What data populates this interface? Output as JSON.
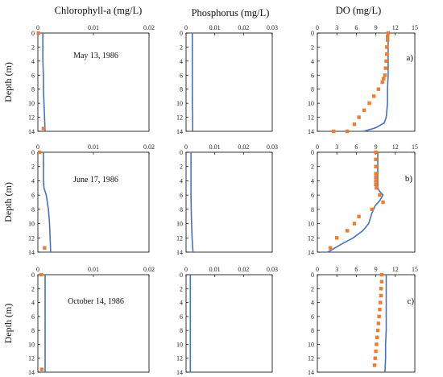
{
  "column_titles": [
    "Chlorophyll-a (mg/L)",
    "Phosphorus (mg/L)",
    "DO (mg/L)"
  ],
  "row_ylabel": "Depth (m)",
  "colors": {
    "model_line": "#4472C4",
    "observed_marker": "#ED7D31",
    "axis": "#000000"
  },
  "chart_data": [
    {
      "type": "line",
      "panel": "chlorophyll-may",
      "title": "Chlorophyll-a (mg/L)",
      "annotation": "May 13, 1986",
      "xlim": [
        0,
        0.02
      ],
      "xticks": [
        "0",
        "0.01",
        "0.02"
      ],
      "ylim": [
        0,
        14
      ],
      "yticks": [
        "0",
        "2",
        "4",
        "6",
        "8",
        "10",
        "12",
        "14"
      ],
      "ylabel": "Depth (m)",
      "series": [
        {
          "kind": "model",
          "x": [
            0.0009,
            0.0009,
            0.0009,
            0.001,
            0.001,
            0.0011,
            0.0012,
            0.0013
          ],
          "y": [
            0,
            2,
            4,
            6,
            8,
            10,
            12,
            14
          ]
        },
        {
          "kind": "observed",
          "x": [
            0.0001,
            0.001
          ],
          "y": [
            0,
            13.6
          ]
        }
      ]
    },
    {
      "type": "line",
      "panel": "phosphorus-may",
      "title": "Phosphorus (mg/L)",
      "xlim": [
        0,
        0.03
      ],
      "xticks": [
        "0",
        "0.01",
        "0.02",
        "0.03"
      ],
      "ylim": [
        0,
        14
      ],
      "yticks": [
        "0",
        "2",
        "4",
        "6",
        "8",
        "10",
        "12",
        "14"
      ],
      "series": [
        {
          "kind": "model",
          "x": [
            0.0022,
            0.0022,
            0.0022,
            0.0022,
            0.0022,
            0.0022,
            0.0023,
            0.0023
          ],
          "y": [
            0,
            2,
            4,
            6,
            8,
            10,
            12,
            14
          ]
        }
      ]
    },
    {
      "type": "line",
      "panel": "do-may",
      "title": "DO (mg/L)",
      "annotation": "a)",
      "xlim": [
        0,
        15
      ],
      "xticks": [
        "0",
        "3",
        "6",
        "9",
        "12",
        "15"
      ],
      "ylim": [
        0,
        14
      ],
      "yticks": [
        "0",
        "2",
        "4",
        "6",
        "8",
        "10",
        "12",
        "14"
      ],
      "series": [
        {
          "kind": "model",
          "x": [
            10.9,
            10.9,
            10.9,
            10.9,
            10.8,
            10.8,
            10.7,
            10.6,
            10.3,
            9.0,
            7.1
          ],
          "y": [
            0,
            2,
            4,
            6,
            8,
            10,
            11,
            12,
            12.8,
            13.5,
            14
          ]
        },
        {
          "kind": "observed",
          "x": [
            10.9,
            10.8,
            10.8,
            10.7,
            10.7,
            10.6,
            10.5,
            10.4,
            10.2,
            10.0,
            9.4,
            8.7,
            8.0,
            7.2,
            6.4,
            5.7,
            4.6,
            2.5
          ],
          "y": [
            0,
            0.5,
            1,
            2,
            3,
            4,
            5,
            6,
            6.5,
            7,
            8,
            9,
            10,
            11,
            12,
            13,
            14,
            14
          ]
        }
      ]
    },
    {
      "type": "line",
      "panel": "chlorophyll-june",
      "annotation": "June 17, 1986",
      "xlim": [
        0,
        0.02
      ],
      "xticks": [
        "0",
        "0.01",
        "0.02"
      ],
      "ylim": [
        0,
        14
      ],
      "yticks": [
        "0",
        "2",
        "4",
        "6",
        "8",
        "10",
        "12",
        "14"
      ],
      "ylabel": "Depth (m)",
      "series": [
        {
          "kind": "model",
          "x": [
            0.001,
            0.001,
            0.001,
            0.0011,
            0.0015,
            0.0019,
            0.0021,
            0.0022,
            0.0023
          ],
          "y": [
            0,
            2,
            4,
            5,
            6,
            8,
            10,
            12,
            14
          ]
        },
        {
          "kind": "observed",
          "x": [
            0.0003,
            0.0012
          ],
          "y": [
            0,
            13.4
          ]
        }
      ]
    },
    {
      "type": "line",
      "panel": "phosphorus-june",
      "xlim": [
        0,
        0.03
      ],
      "xticks": [
        "0",
        "0.01",
        "0.02",
        "0.03"
      ],
      "ylim": [
        0,
        14
      ],
      "yticks": [
        "0",
        "2",
        "4",
        "6",
        "8",
        "10",
        "12",
        "14"
      ],
      "series": [
        {
          "kind": "model",
          "x": [
            0.0017,
            0.0017,
            0.0017,
            0.0017,
            0.0018,
            0.0019,
            0.0021,
            0.0024
          ],
          "y": [
            0,
            2,
            4,
            6,
            8,
            10,
            12,
            14
          ]
        }
      ]
    },
    {
      "type": "line",
      "panel": "do-june",
      "annotation": "b)",
      "xlim": [
        0,
        15
      ],
      "xticks": [
        "0",
        "3",
        "6",
        "9",
        "12",
        "15"
      ],
      "ylim": [
        0,
        14
      ],
      "yticks": [
        "0",
        "2",
        "4",
        "6",
        "8",
        "10",
        "12",
        "14"
      ],
      "series": [
        {
          "kind": "model",
          "x": [
            9.3,
            9.3,
            9.3,
            9.3,
            9.3,
            9.6,
            10.1,
            9.6,
            8.9,
            8.4,
            7.9,
            7.0,
            5.5,
            3.5,
            1.6
          ],
          "y": [
            0,
            2,
            4,
            4.5,
            5,
            5.5,
            6,
            6.8,
            7.5,
            8.5,
            10,
            11,
            12,
            13,
            14
          ]
        },
        {
          "kind": "observed",
          "x": [
            9.0,
            9.0,
            9.0,
            9.0,
            9.0,
            9.0,
            9.0,
            9.1,
            9.6,
            10.1,
            8.4,
            6.4,
            5.7,
            4.6,
            3.0,
            2.0
          ],
          "y": [
            0,
            1,
            2,
            3,
            3.5,
            4,
            4.5,
            5,
            6,
            7,
            8,
            9,
            10,
            11,
            12,
            13.4
          ]
        }
      ]
    },
    {
      "type": "line",
      "panel": "chlorophyll-october",
      "annotation": "October 14, 1986",
      "xlim": [
        0,
        0.02
      ],
      "xticks": [
        "0",
        "0.01",
        "0.02"
      ],
      "ylim": [
        0,
        14
      ],
      "yticks": [
        "0",
        "2",
        "4",
        "6",
        "8",
        "10",
        "12",
        "14"
      ],
      "ylabel": "Depth (m)",
      "series": [
        {
          "kind": "model",
          "x": [
            0.0013,
            0.0013,
            0.0013,
            0.0013,
            0.0013,
            0.0013,
            0.0013,
            0.0013
          ],
          "y": [
            0,
            2,
            4,
            6,
            8,
            10,
            12,
            14
          ]
        },
        {
          "kind": "observed",
          "x": [
            0.0006,
            0.0007
          ],
          "y": [
            0,
            13.6
          ]
        }
      ]
    },
    {
      "type": "line",
      "panel": "phosphorus-october",
      "xlim": [
        0,
        0.03
      ],
      "xticks": [
        "0",
        "0.01",
        "0.02",
        "0.03"
      ],
      "ylim": [
        0,
        14
      ],
      "yticks": [
        "0",
        "2",
        "4",
        "6",
        "8",
        "10",
        "12",
        "14"
      ],
      "series": [
        {
          "kind": "model",
          "x": [
            0.0015,
            0.0015,
            0.0015,
            0.0015,
            0.0015,
            0.0015,
            0.0015,
            0.0015
          ],
          "y": [
            0,
            2,
            4,
            6,
            8,
            10,
            12,
            14
          ]
        }
      ]
    },
    {
      "type": "line",
      "panel": "do-october",
      "annotation": "c)",
      "xlim": [
        0,
        15
      ],
      "xticks": [
        "0",
        "3",
        "6",
        "9",
        "12",
        "15"
      ],
      "ylim": [
        0,
        14
      ],
      "yticks": [
        "0",
        "2",
        "4",
        "6",
        "8",
        "10",
        "12",
        "14"
      ],
      "series": [
        {
          "kind": "model",
          "x": [
            10.6,
            10.6,
            10.6,
            10.6,
            10.6,
            10.5,
            10.5,
            10.4
          ],
          "y": [
            0,
            2,
            4,
            6,
            8,
            10,
            12,
            14
          ]
        },
        {
          "kind": "observed",
          "x": [
            9.9,
            9.9,
            9.8,
            9.8,
            9.7,
            9.6,
            9.5,
            9.4,
            9.3,
            9.2,
            9.1,
            9.0,
            8.9,
            8.8
          ],
          "y": [
            0,
            1,
            2,
            3,
            4,
            5,
            6,
            7,
            8,
            9,
            10,
            11,
            12,
            13
          ]
        }
      ]
    }
  ]
}
